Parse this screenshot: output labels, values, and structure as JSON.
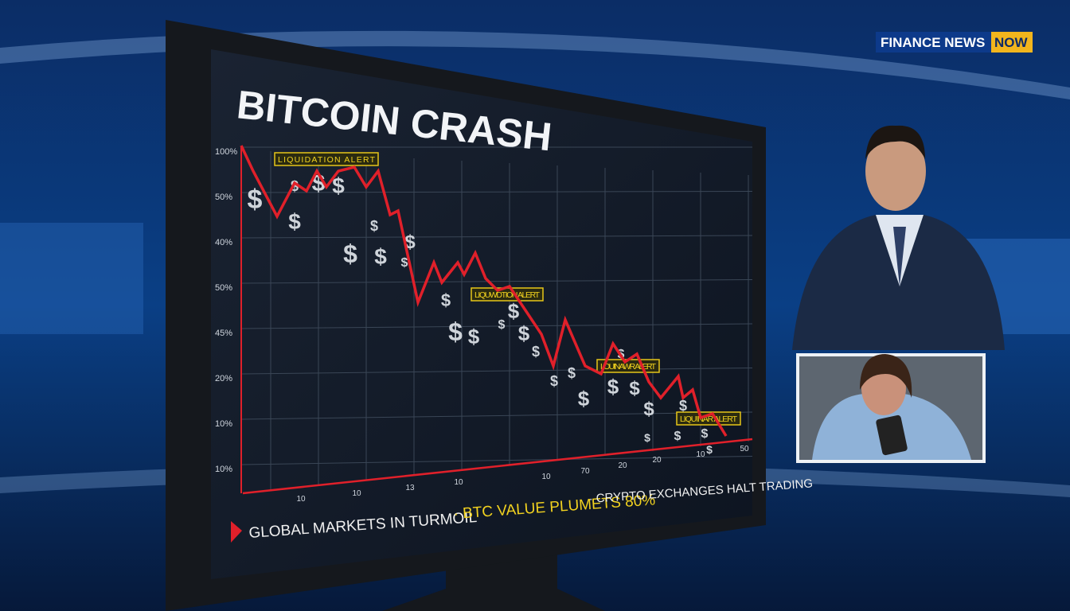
{
  "logo": {
    "brand": "FINANCE NEWS",
    "tag": "NOW"
  },
  "screen": {
    "title": "BITCOIN CRASH",
    "y_labels": [
      "100%",
      "50%",
      "40%",
      "50%",
      "45%",
      "20%",
      "10%",
      "10%"
    ],
    "x_labels": [
      "10",
      "10",
      "13",
      "10",
      "10",
      "70",
      "20",
      "20",
      "10",
      "50"
    ],
    "alerts": [
      "LIQUIDATION ALERT",
      "LIQUWDTION ALERT",
      "LOUINAWR ALERT",
      "LIQUINAR ALERT"
    ],
    "dollar_icon": "$",
    "ticker": [
      "GLOBAL MARKETS IN TURMOIL",
      "· BTC VALUE PLUMETS 80%",
      "· CRYPTO EXCHANGES HALT TRADING"
    ]
  }
}
